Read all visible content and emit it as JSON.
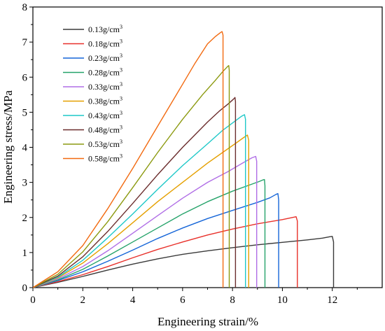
{
  "chart_data": {
    "type": "line",
    "xlabel": "Engineering strain/%",
    "ylabel": "Engineering stress/MPa",
    "xlim": [
      0,
      14
    ],
    "ylim": [
      0,
      8
    ],
    "xticks": [
      0,
      2,
      4,
      6,
      8,
      10,
      12
    ],
    "yticks": [
      0,
      1,
      2,
      3,
      4,
      5,
      6,
      7,
      8
    ],
    "legend_position": "top-left",
    "grid": false,
    "series": [
      {
        "name": "0.13g/cm³",
        "color": "#3a3a3a",
        "x": [
          0,
          1,
          2,
          3,
          4,
          5,
          6,
          7,
          8,
          9,
          10,
          11,
          11.6,
          11.9,
          12.0,
          12.05,
          12.05
        ],
        "y": [
          0,
          0.15,
          0.32,
          0.5,
          0.67,
          0.82,
          0.95,
          1.05,
          1.14,
          1.22,
          1.29,
          1.36,
          1.41,
          1.45,
          1.46,
          1.3,
          0
        ]
      },
      {
        "name": "0.18g/cm³",
        "color": "#e8302a",
        "x": [
          0,
          1,
          2,
          3,
          4,
          5,
          6,
          7,
          8,
          9,
          10,
          10.4,
          10.55,
          10.6,
          10.6
        ],
        "y": [
          0,
          0.17,
          0.37,
          0.6,
          0.85,
          1.09,
          1.3,
          1.5,
          1.67,
          1.82,
          1.94,
          2.0,
          2.02,
          1.9,
          0
        ]
      },
      {
        "name": "0.23g/cm³",
        "color": "#1565d8",
        "x": [
          0,
          1,
          2,
          3,
          4,
          5,
          6,
          7,
          8,
          9,
          9.5,
          9.75,
          9.82,
          9.85,
          9.85
        ],
        "y": [
          0,
          0.2,
          0.45,
          0.75,
          1.07,
          1.4,
          1.7,
          1.97,
          2.2,
          2.43,
          2.56,
          2.66,
          2.68,
          2.5,
          0
        ]
      },
      {
        "name": "0.28g/cm³",
        "color": "#25a36a",
        "x": [
          0,
          1,
          2,
          3,
          4,
          5,
          6,
          7,
          8,
          8.7,
          9.05,
          9.22,
          9.28,
          9.3,
          9.3
        ],
        "y": [
          0,
          0.22,
          0.52,
          0.9,
          1.3,
          1.7,
          2.1,
          2.45,
          2.75,
          2.93,
          3.02,
          3.07,
          3.08,
          2.9,
          0
        ]
      },
      {
        "name": "0.33g/cm³",
        "color": "#b06ee6",
        "x": [
          0,
          1,
          2,
          3,
          4,
          5,
          6,
          7,
          7.8,
          8.4,
          8.78,
          8.93,
          8.97,
          8.97
        ],
        "y": [
          0,
          0.25,
          0.6,
          1.05,
          1.55,
          2.05,
          2.55,
          3.0,
          3.3,
          3.55,
          3.7,
          3.74,
          3.6,
          0
        ]
      },
      {
        "name": "0.38g/cm³",
        "color": "#e5a000",
        "x": [
          0,
          1,
          2,
          3,
          4,
          5,
          6,
          7,
          7.6,
          8.1,
          8.45,
          8.6,
          8.65,
          8.65
        ],
        "y": [
          0,
          0.28,
          0.7,
          1.25,
          1.85,
          2.45,
          3.0,
          3.55,
          3.85,
          4.1,
          4.28,
          4.35,
          4.2,
          0
        ]
      },
      {
        "name": "0.43g/cm³",
        "color": "#1ec8c8",
        "x": [
          0,
          1,
          2,
          3,
          4,
          5,
          6,
          7,
          7.6,
          8.05,
          8.35,
          8.48,
          8.52,
          8.52
        ],
        "y": [
          0,
          0.3,
          0.78,
          1.42,
          2.1,
          2.8,
          3.48,
          4.1,
          4.48,
          4.72,
          4.88,
          4.93,
          4.8,
          0
        ]
      },
      {
        "name": "0.48g/cm³",
        "color": "#6b2d2d",
        "x": [
          0,
          1,
          2,
          3,
          4,
          5,
          6,
          7,
          7.5,
          7.85,
          8.05,
          8.1,
          8.12,
          8.12
        ],
        "y": [
          0,
          0.33,
          0.88,
          1.6,
          2.4,
          3.22,
          4.0,
          4.72,
          5.05,
          5.25,
          5.38,
          5.42,
          5.3,
          0
        ]
      },
      {
        "name": "0.53g/cm³",
        "color": "#8c9a10",
        "x": [
          0,
          1,
          2,
          3,
          4,
          5,
          6,
          6.8,
          7.3,
          7.6,
          7.8,
          7.85,
          7.87,
          7.87
        ],
        "y": [
          0,
          0.38,
          1.02,
          1.88,
          2.85,
          3.85,
          4.8,
          5.5,
          5.9,
          6.15,
          6.3,
          6.33,
          6.2,
          0
        ]
      },
      {
        "name": "0.58g/cm³",
        "color": "#f26a10",
        "x": [
          0,
          1,
          2,
          3,
          4,
          5,
          6,
          6.5,
          7.0,
          7.3,
          7.5,
          7.58,
          7.62,
          7.62
        ],
        "y": [
          0,
          0.45,
          1.2,
          2.25,
          3.4,
          4.6,
          5.8,
          6.4,
          6.95,
          7.15,
          7.26,
          7.3,
          7.2,
          0
        ]
      }
    ]
  }
}
